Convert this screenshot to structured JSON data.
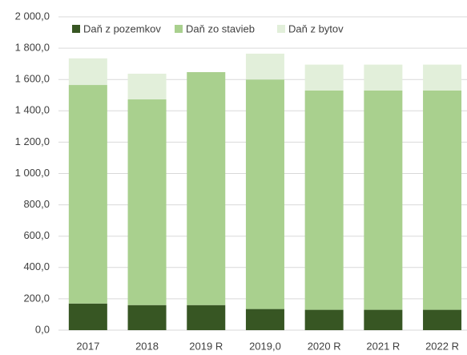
{
  "chart_data": {
    "type": "stacked_bar",
    "categories": [
      "2017",
      "2018",
      "2019 R",
      "2019,0",
      "2020 R",
      "2021 R",
      "2022 R"
    ],
    "series": [
      {
        "name": "Daň z pozemkov",
        "color": "#375623",
        "values": [
          170,
          160,
          160,
          135,
          130,
          130,
          130
        ]
      },
      {
        "name": "Daň zo stavieb",
        "color": "#a9d08e",
        "values": [
          1395,
          1313,
          1487,
          1465,
          1400,
          1400,
          1400
        ]
      },
      {
        "name": "Daň z bytov",
        "color": "#e2efda",
        "values": [
          170,
          164,
          0,
          165,
          165,
          165,
          165
        ]
      }
    ],
    "ylim": [
      0,
      2000
    ],
    "yticks": [
      {
        "value": 0,
        "label": "0,0"
      },
      {
        "value": 200,
        "label": "200,0"
      },
      {
        "value": 400,
        "label": "400,0"
      },
      {
        "value": 600,
        "label": "600,0"
      },
      {
        "value": 800,
        "label": "800,0"
      },
      {
        "value": 1000,
        "label": "1 000,0"
      },
      {
        "value": 1200,
        "label": "1 200,0"
      },
      {
        "value": 1400,
        "label": "1 400,0"
      },
      {
        "value": 1600,
        "label": "1 600,0"
      },
      {
        "value": 1800,
        "label": "1 800,0"
      },
      {
        "value": 2000,
        "label": "2 000,0"
      }
    ],
    "grid": true,
    "legend": "top-left"
  }
}
